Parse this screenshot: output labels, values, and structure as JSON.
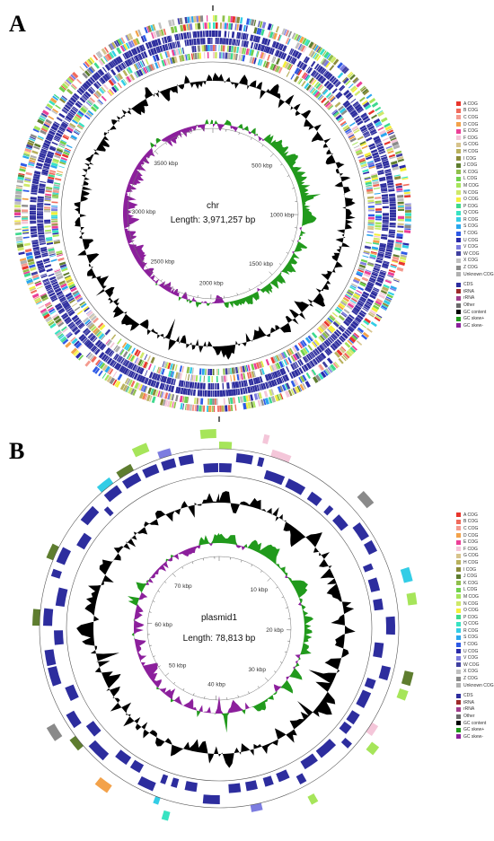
{
  "panels": [
    {
      "letter": "A",
      "name": "chr",
      "length_label": "Length: 3,971,257 bp",
      "total_bp": 3971257,
      "tick_labels": [
        "500 kbp",
        "1000 kbp",
        "1500 kbp",
        "2000 kbp",
        "2500 kbp",
        "3000 kbp",
        "3500 kbp"
      ],
      "tick_values_kbp": [
        500,
        1000,
        1500,
        2000,
        2500,
        3000,
        3500
      ]
    },
    {
      "letter": "B",
      "name": "plasmid1",
      "length_label": "Length: 78,813 bp",
      "total_bp": 78813,
      "tick_labels": [
        "10 kbp",
        "20 kbp",
        "30 kbp",
        "40 kbp",
        "50 kbp",
        "60 kbp",
        "70 kbp"
      ],
      "tick_values_kbp": [
        10,
        20,
        30,
        40,
        50,
        60,
        70
      ]
    }
  ],
  "legend": [
    {
      "label": "A COG",
      "color": "#e8352c"
    },
    {
      "label": "B COG",
      "color": "#f06b5c"
    },
    {
      "label": "C COG",
      "color": "#f49a8e"
    },
    {
      "label": "D COG",
      "color": "#f3a24a"
    },
    {
      "label": "E COG",
      "color": "#ec3f97"
    },
    {
      "label": "F COG",
      "color": "#f4c6d9"
    },
    {
      "label": "G COG",
      "color": "#d7c48c"
    },
    {
      "label": "H COG",
      "color": "#b9b15d"
    },
    {
      "label": "I COG",
      "color": "#8b8b3a"
    },
    {
      "label": "J COG",
      "color": "#5e7d2f"
    },
    {
      "label": "K COG",
      "color": "#8fbf4b"
    },
    {
      "label": "L COG",
      "color": "#6fd14d"
    },
    {
      "label": "M COG",
      "color": "#a6e55a"
    },
    {
      "label": "N COG",
      "color": "#cfe96a"
    },
    {
      "label": "O COG",
      "color": "#f5ef3a"
    },
    {
      "label": "P COG",
      "color": "#3ed98e"
    },
    {
      "label": "Q COG",
      "color": "#38e3c2"
    },
    {
      "label": "R COG",
      "color": "#33cde6"
    },
    {
      "label": "S COG",
      "color": "#2aa6ee"
    },
    {
      "label": "T COG",
      "color": "#2e5ae6"
    },
    {
      "label": "U COG",
      "color": "#2a2aa8"
    },
    {
      "label": "V COG",
      "color": "#7d7de0"
    },
    {
      "label": "W COG",
      "color": "#4040a0"
    },
    {
      "label": "X COG",
      "color": "#c0c0c0"
    },
    {
      "label": "Z COG",
      "color": "#8a8a8a"
    },
    {
      "label": "Unknown COG",
      "color": "#b0b0b0"
    },
    {
      "label": "CDS",
      "color": "#2d2d9e",
      "gap": true
    },
    {
      "label": "tRNA",
      "color": "#9e2a2a"
    },
    {
      "label": "rRNA",
      "color": "#a03c8c"
    },
    {
      "label": "Other",
      "color": "#6a6a6a"
    },
    {
      "label": "GC content",
      "color": "#000000"
    },
    {
      "label": "GC skew+",
      "color": "#219a1c"
    },
    {
      "label": "GC skew-",
      "color": "#8c1f9c"
    }
  ],
  "colors": {
    "cds": "#2d2d9e",
    "gc": "#000000",
    "skew_pos": "#219a1c",
    "skew_neg": "#8c1f9c",
    "backbone": "#555555"
  }
}
